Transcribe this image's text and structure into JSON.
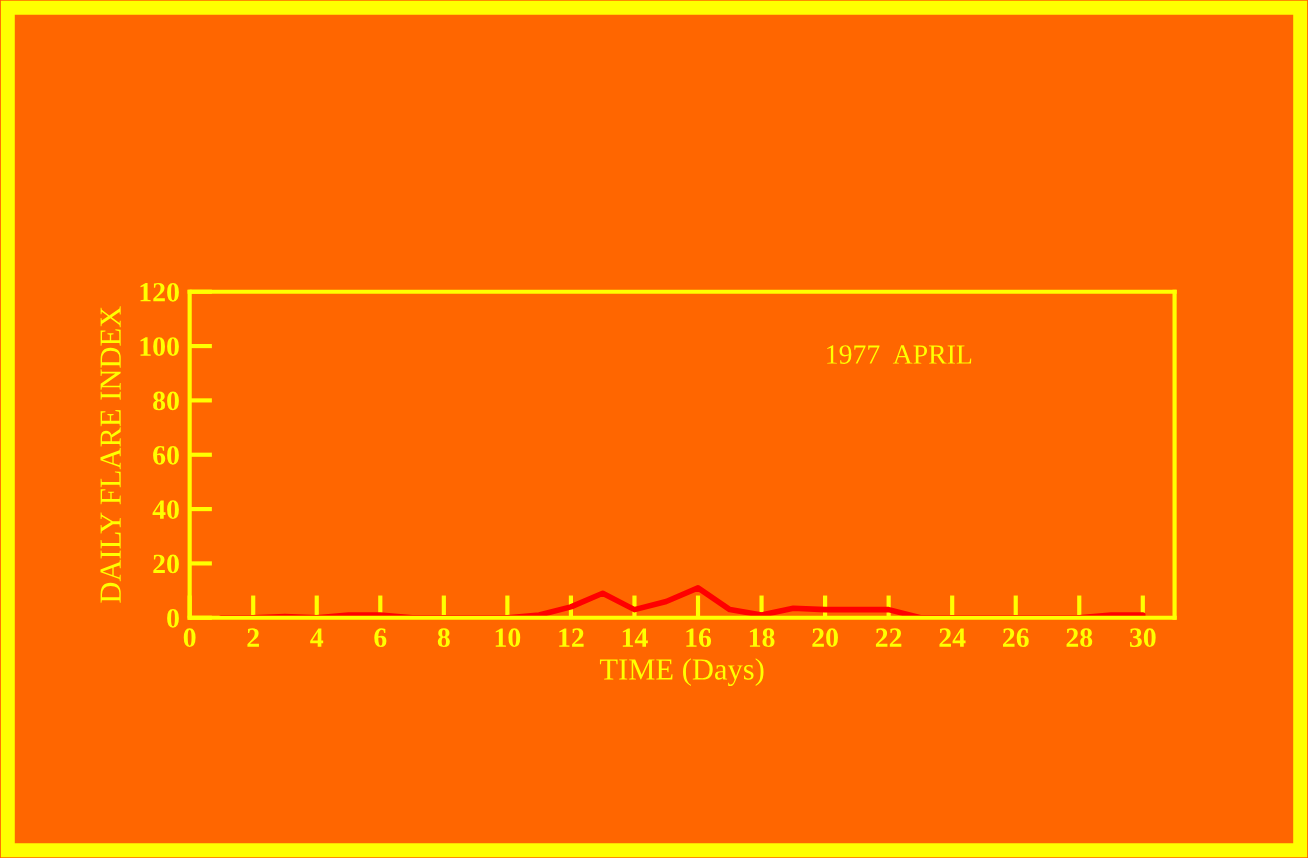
{
  "chart_data": {
    "type": "line",
    "xlabel": "TIME (Days)",
    "ylabel": "DAILY FLARE INDEX",
    "annotations": [
      "1977  APRIL"
    ],
    "x": [
      1,
      2,
      3,
      4,
      5,
      6,
      7,
      8,
      9,
      10,
      11,
      12,
      13,
      14,
      15,
      16,
      17,
      18,
      19,
      20,
      21,
      22,
      23,
      24,
      25,
      26,
      27,
      28,
      29,
      30
    ],
    "series": [
      {
        "color": "#ff0000",
        "values": [
          0,
          0,
          0.5,
          0,
          1,
          1,
          0,
          0,
          0,
          0,
          1,
          4,
          9,
          3,
          6,
          11,
          3,
          1,
          3.5,
          3,
          3,
          3,
          0,
          0,
          0,
          0,
          0,
          0,
          1,
          1
        ]
      }
    ],
    "xlim": [
      0,
      31
    ],
    "ylim": [
      0,
      120
    ],
    "xticks": [
      0,
      2,
      4,
      6,
      8,
      10,
      12,
      14,
      16,
      18,
      20,
      22,
      24,
      26,
      28,
      30
    ],
    "yticks": [
      0,
      20,
      40,
      60,
      80,
      100,
      120
    ],
    "grid": false,
    "legend": false,
    "marker": "none",
    "line_style": "solid"
  }
}
